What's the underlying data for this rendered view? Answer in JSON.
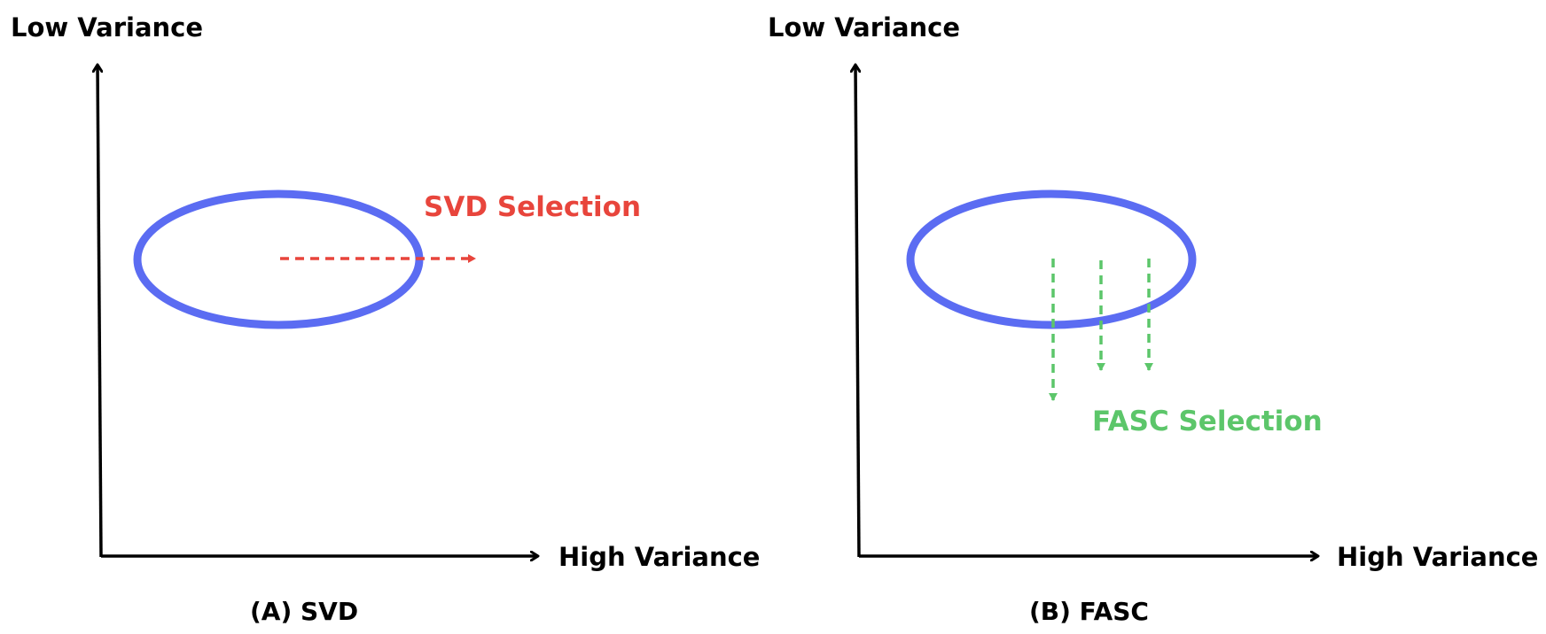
{
  "colors": {
    "axis": "#000000",
    "ellipse": "#5b6cf2",
    "svd": "#e8453c",
    "fasc": "#5cc66a"
  },
  "panels": [
    {
      "y_axis_label": "Low Variance",
      "x_axis_label": "High Variance",
      "selection_label": "SVD Selection",
      "caption": "(A) SVD"
    },
    {
      "y_axis_label": "Low Variance",
      "x_axis_label": "High Variance",
      "selection_label": "FASC Selection",
      "caption": "(B) FASC"
    }
  ]
}
